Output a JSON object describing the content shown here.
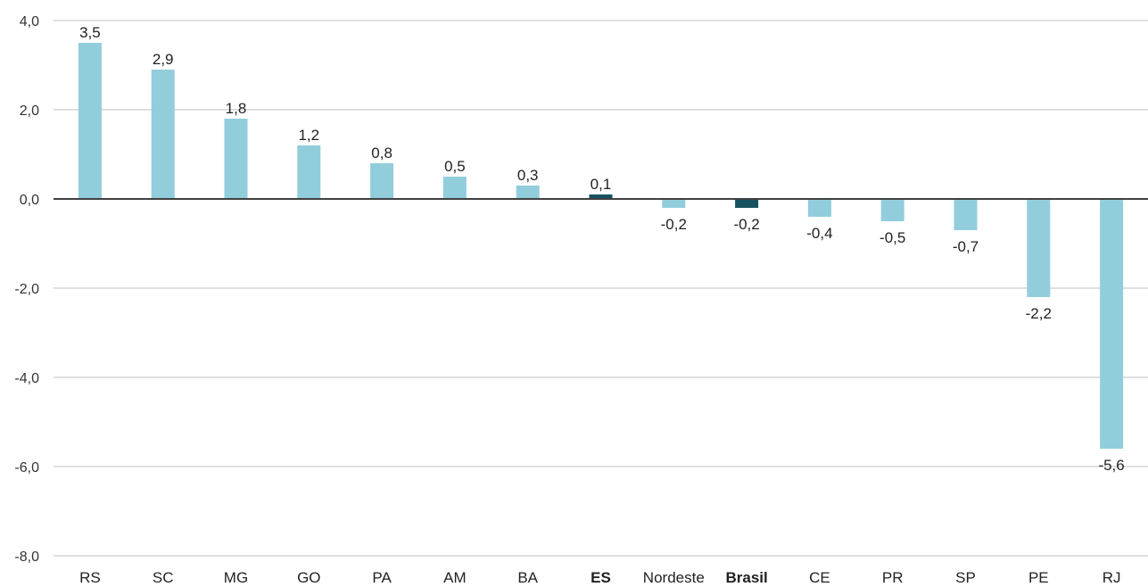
{
  "chart_data": {
    "type": "bar",
    "categories": [
      "RS",
      "SC",
      "MG",
      "GO",
      "PA",
      "AM",
      "BA",
      "ES",
      "Nordeste",
      "Brasil",
      "CE",
      "PR",
      "SP",
      "PE",
      "RJ"
    ],
    "values": [
      3.5,
      2.9,
      1.8,
      1.2,
      0.8,
      0.5,
      0.3,
      0.1,
      -0.2,
      -0.2,
      -0.4,
      -0.5,
      -0.7,
      -2.2,
      -5.6
    ],
    "data_labels": [
      "3,5",
      "2,9",
      "1,8",
      "1,2",
      "0,8",
      "0,5",
      "0,3",
      "0,1",
      "-0,2",
      "-0,2",
      "-0,4",
      "-0,5",
      "-0,7",
      "-2,2",
      "-5,6"
    ],
    "highlighted_categories": [
      "ES",
      "Brasil"
    ],
    "ylim": [
      -8,
      4
    ],
    "y_ticks": [
      4,
      2,
      0,
      -2,
      -4,
      -6,
      -8
    ],
    "y_tick_labels": [
      "4,0",
      "2,0",
      "0,0",
      "-2,0",
      "-4,0",
      "-6,0",
      "-8,0"
    ],
    "grid": true,
    "title": "",
    "xlabel": "",
    "ylabel": "",
    "colors": {
      "bar": "#92CDDC",
      "highlight": "#17505F",
      "grid": "#BFBFBF",
      "zero_line": "#404040"
    }
  }
}
